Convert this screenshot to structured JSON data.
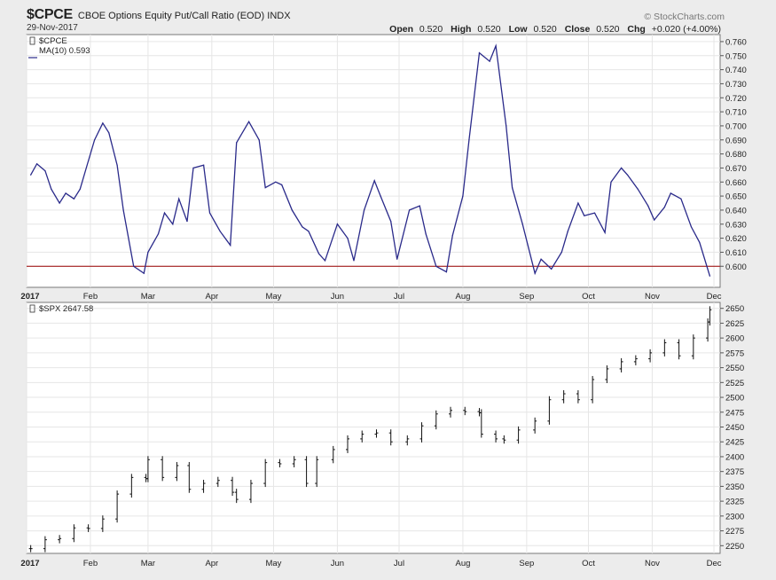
{
  "header": {
    "symbol": "$CPCE",
    "name": "CBOE Options Equity Put/Call Ratio (EOD)",
    "exchange": "INDX",
    "date": "29-Nov-2017",
    "watermark": "© StockCharts.com",
    "open_label": "Open",
    "open_value": "0.520",
    "high_label": "High",
    "high_value": "0.520",
    "low_label": "Low",
    "low_value": "0.520",
    "close_label": "Close",
    "close_value": "0.520",
    "chg_label": "Chg",
    "chg_value": "+0.020 (+4.00%)"
  },
  "colors": {
    "ma_line": "#2a2a8a",
    "ref_line": "#990000",
    "bars": "#111111",
    "panel_bg": "#ffffff",
    "grid": "#e6e6e6"
  },
  "chart_data": [
    {
      "type": "line",
      "legend": [
        "$CPCE",
        "MA(10) 0.593"
      ],
      "series": [
        {
          "name": "MA(10) 0.593",
          "x": [
            "2017-01-03",
            "2017-01-06",
            "2017-01-10",
            "2017-01-13",
            "2017-01-17",
            "2017-01-20",
            "2017-01-24",
            "2017-01-27",
            "2017-01-31",
            "2017-02-03",
            "2017-02-07",
            "2017-02-10",
            "2017-02-14",
            "2017-02-17",
            "2017-02-22",
            "2017-02-27",
            "2017-03-01",
            "2017-03-06",
            "2017-03-09",
            "2017-03-13",
            "2017-03-16",
            "2017-03-20",
            "2017-03-23",
            "2017-03-28",
            "2017-03-31",
            "2017-04-05",
            "2017-04-10",
            "2017-04-13",
            "2017-04-19",
            "2017-04-24",
            "2017-04-27",
            "2017-05-02",
            "2017-05-05",
            "2017-05-10",
            "2017-05-15",
            "2017-05-18",
            "2017-05-23",
            "2017-05-26",
            "2017-06-01",
            "2017-06-06",
            "2017-06-09",
            "2017-06-14",
            "2017-06-19",
            "2017-06-22",
            "2017-06-27",
            "2017-06-30",
            "2017-07-06",
            "2017-07-11",
            "2017-07-14",
            "2017-07-19",
            "2017-07-24",
            "2017-07-27",
            "2017-08-01",
            "2017-08-04",
            "2017-08-09",
            "2017-08-14",
            "2017-08-17",
            "2017-08-22",
            "2017-08-25",
            "2017-08-30",
            "2017-09-05",
            "2017-09-08",
            "2017-09-13",
            "2017-09-18",
            "2017-09-21",
            "2017-09-26",
            "2017-09-29",
            "2017-10-04",
            "2017-10-09",
            "2017-10-12",
            "2017-10-17",
            "2017-10-20",
            "2017-10-25",
            "2017-10-30",
            "2017-11-02",
            "2017-11-07",
            "2017-11-10",
            "2017-11-15",
            "2017-11-20",
            "2017-11-24",
            "2017-11-29"
          ],
          "values": [
            0.665,
            0.673,
            0.668,
            0.655,
            0.645,
            0.652,
            0.648,
            0.655,
            0.675,
            0.69,
            0.702,
            0.695,
            0.672,
            0.64,
            0.6,
            0.595,
            0.61,
            0.623,
            0.638,
            0.63,
            0.648,
            0.632,
            0.67,
            0.672,
            0.638,
            0.625,
            0.615,
            0.688,
            0.703,
            0.69,
            0.656,
            0.66,
            0.658,
            0.64,
            0.628,
            0.625,
            0.609,
            0.604,
            0.63,
            0.62,
            0.604,
            0.64,
            0.661,
            0.65,
            0.632,
            0.605,
            0.64,
            0.643,
            0.623,
            0.6,
            0.596,
            0.622,
            0.65,
            0.69,
            0.752,
            0.746,
            0.757,
            0.7,
            0.656,
            0.63,
            0.595,
            0.605,
            0.598,
            0.61,
            0.625,
            0.645,
            0.636,
            0.638,
            0.624,
            0.66,
            0.67,
            0.665,
            0.655,
            0.643,
            0.633,
            0.642,
            0.652,
            0.648,
            0.628,
            0.617,
            0.593
          ]
        }
      ],
      "reference_line": 0.6,
      "ylim": [
        0.585,
        0.765
      ],
      "yticks": [
        "0.600",
        "0.610",
        "0.620",
        "0.630",
        "0.640",
        "0.650",
        "0.660",
        "0.670",
        "0.680",
        "0.690",
        "0.700",
        "0.710",
        "0.720",
        "0.730",
        "0.740",
        "0.750",
        "0.760"
      ],
      "xticks": [
        "2017",
        "Feb",
        "Mar",
        "Apr",
        "May",
        "Jun",
        "Jul",
        "Aug",
        "Sep",
        "Oct",
        "Nov",
        "Dec"
      ],
      "grid": true
    },
    {
      "type": "ohlc",
      "legend": [
        "$SPX 2647.58"
      ],
      "series": [
        {
          "name": "$SPX 2647.58",
          "x": [
            "2017-01-03",
            "2017-01-10",
            "2017-01-17",
            "2017-01-24",
            "2017-01-31",
            "2017-02-07",
            "2017-02-14",
            "2017-02-21",
            "2017-02-28",
            "2017-03-01",
            "2017-03-08",
            "2017-03-15",
            "2017-03-21",
            "2017-03-28",
            "2017-04-04",
            "2017-04-11",
            "2017-04-13",
            "2017-04-20",
            "2017-04-27",
            "2017-05-04",
            "2017-05-11",
            "2017-05-17",
            "2017-05-22",
            "2017-05-30",
            "2017-06-06",
            "2017-06-13",
            "2017-06-20",
            "2017-06-27",
            "2017-07-05",
            "2017-07-12",
            "2017-07-19",
            "2017-07-26",
            "2017-08-02",
            "2017-08-09",
            "2017-08-10",
            "2017-08-17",
            "2017-08-21",
            "2017-08-28",
            "2017-09-05",
            "2017-09-12",
            "2017-09-19",
            "2017-09-26",
            "2017-10-03",
            "2017-10-10",
            "2017-10-17",
            "2017-10-24",
            "2017-10-31",
            "2017-11-07",
            "2017-11-14",
            "2017-11-21",
            "2017-11-28",
            "2017-11-29"
          ],
          "values": [
            2245,
            2260,
            2262,
            2280,
            2279,
            2295,
            2337,
            2365,
            2363,
            2395,
            2365,
            2385,
            2345,
            2355,
            2360,
            2340,
            2328,
            2355,
            2390,
            2388,
            2395,
            2355,
            2395,
            2412,
            2430,
            2438,
            2440,
            2425,
            2430,
            2452,
            2472,
            2478,
            2476,
            2474,
            2438,
            2430,
            2428,
            2445,
            2460,
            2496,
            2506,
            2496,
            2530,
            2548,
            2560,
            2565,
            2575,
            2592,
            2570,
            2600,
            2627,
            2647.58
          ]
        }
      ],
      "ylim": [
        2237,
        2660
      ],
      "yticks": [
        "2250",
        "2275",
        "2300",
        "2325",
        "2350",
        "2375",
        "2400",
        "2425",
        "2450",
        "2475",
        "2500",
        "2525",
        "2550",
        "2575",
        "2600",
        "2625",
        "2650"
      ],
      "xticks": [
        "2017",
        "Feb",
        "Mar",
        "Apr",
        "May",
        "Jun",
        "Jul",
        "Aug",
        "Sep",
        "Oct",
        "Nov",
        "Dec"
      ],
      "grid": true
    }
  ]
}
